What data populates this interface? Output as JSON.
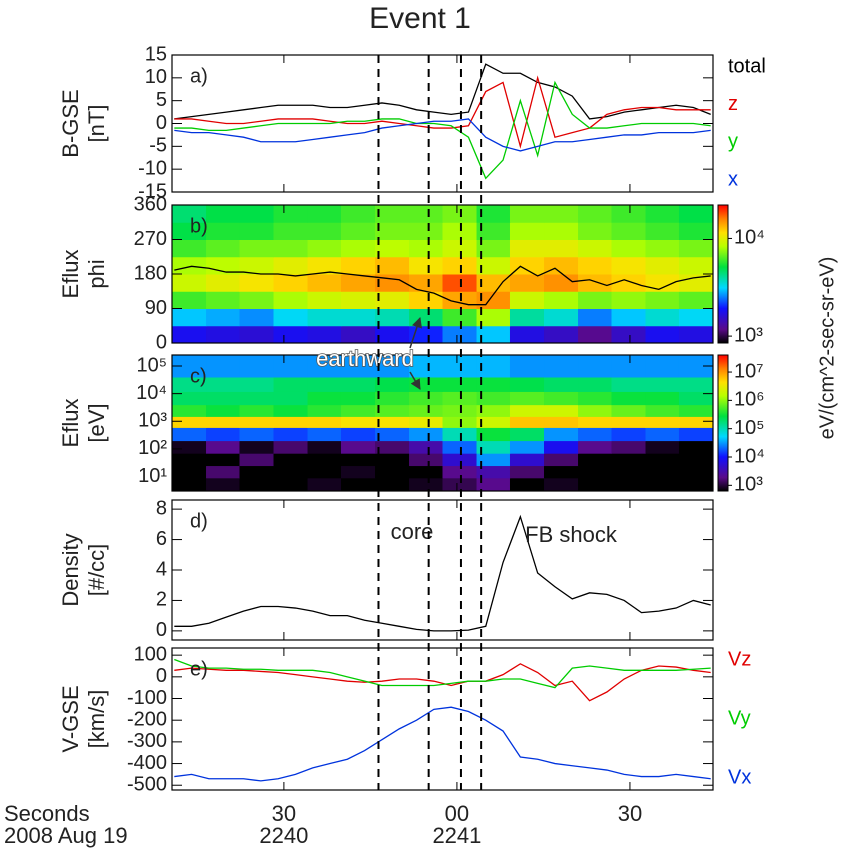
{
  "title": "Event 1",
  "xaxis": {
    "xlim": [
      10.6,
      104.4
    ],
    "xticks": [
      30,
      {
        "value": 60,
        "label": "00"
      },
      {
        "value": 90,
        "label": "30"
      }
    ],
    "xticks2": [
      {
        "value": 30,
        "label": "2240"
      },
      {
        "value": 60,
        "label": "2241"
      }
    ],
    "xlabel": [
      "Seconds",
      "2008 Aug 19"
    ]
  },
  "event_lines": [
    46.4,
    55.1,
    60.7,
    64.2
  ],
  "chart_data": [
    {
      "type": "line",
      "panel_label": "a)",
      "ylabel": [
        "B-GSE",
        "[nT]"
      ],
      "ylim": [
        -15,
        15
      ],
      "yticks": [
        -15,
        -10,
        -5,
        0,
        5,
        10,
        15
      ],
      "x": [
        11,
        14,
        17,
        20,
        23,
        26,
        29,
        32,
        35,
        38,
        41,
        44,
        47,
        50,
        53,
        56,
        59,
        62,
        65,
        68,
        71,
        74,
        77,
        80,
        83,
        86,
        89,
        92,
        95,
        98,
        101,
        104
      ],
      "series": [
        {
          "name": "total",
          "color": "#000000",
          "values": [
            1,
            1.5,
            2,
            2.5,
            3,
            3.5,
            4,
            4,
            4,
            3.5,
            3.5,
            4,
            4.5,
            4,
            3,
            2.5,
            2,
            2.5,
            13,
            11,
            11,
            9,
            8,
            6,
            1,
            1.5,
            2.5,
            3,
            3.5,
            4,
            3.5,
            2
          ]
        },
        {
          "name": "z",
          "color": "#e00000",
          "values": [
            1,
            1,
            0.5,
            0,
            0,
            0.5,
            1,
            1,
            1,
            0.5,
            0,
            0,
            0.5,
            0,
            -0.5,
            -1,
            -1,
            -0.5,
            7,
            9,
            -5,
            10,
            -3,
            -2,
            -1,
            2,
            3,
            3.5,
            3.5,
            3,
            3,
            3
          ]
        },
        {
          "name": "y",
          "color": "#00cc00",
          "values": [
            -1,
            -1,
            -1.5,
            -1.5,
            -1,
            -0.5,
            0,
            0,
            0,
            0,
            0.5,
            0.5,
            1,
            1,
            0,
            0,
            -0.5,
            -3,
            -12,
            -8,
            5,
            -7,
            9,
            2,
            -1,
            -1,
            -0.5,
            0,
            0,
            0,
            0,
            -0.5
          ]
        },
        {
          "name": "x",
          "color": "#0033dd",
          "values": [
            -1.5,
            -2,
            -2,
            -2.5,
            -3,
            -4,
            -4,
            -4,
            -3.5,
            -3,
            -2.5,
            -2,
            -1,
            -0.5,
            0,
            0.5,
            0.5,
            1,
            -3,
            -5,
            -6,
            -5,
            -4,
            -4,
            -3.5,
            -3,
            -2.5,
            -2.5,
            -2,
            -2,
            -2,
            -1.5
          ]
        }
      ]
    },
    {
      "type": "heatmap",
      "panel_label": "b)",
      "ylabel": [
        "Eflux",
        "phi"
      ],
      "ylim": [
        0,
        360
      ],
      "yticks": [
        0,
        90,
        180,
        270,
        360
      ],
      "x_edges": [
        10.6,
        16.5,
        22.3,
        28.2,
        34.1,
        39.9,
        45.8,
        51.7,
        57.5,
        63.4,
        69.2,
        75.1,
        81,
        86.8,
        92.7,
        98.5,
        104.4
      ],
      "y_edges": [
        0,
        45,
        90,
        135,
        180,
        225,
        270,
        315,
        360
      ],
      "z": [
        [
          1800,
          1700,
          1600,
          1800,
          1700,
          1500,
          1800,
          2000,
          2500,
          3000,
          1700,
          1500,
          1200,
          1500,
          1800,
          1700
        ],
        [
          3000,
          2800,
          2600,
          3200,
          3500,
          3500,
          3800,
          4500,
          6000,
          8000,
          4000,
          3500,
          2500,
          3000,
          3500,
          3200
        ],
        [
          6000,
          6500,
          7000,
          8000,
          9000,
          9500,
          10000,
          12000,
          14000,
          15000,
          9000,
          8000,
          7000,
          7500,
          7000,
          6500
        ],
        [
          9000,
          10000,
          11000,
          12000,
          13000,
          14000,
          15000,
          14000,
          18000,
          13000,
          14000,
          15000,
          13000,
          12000,
          11000,
          10000
        ],
        [
          8000,
          8500,
          9000,
          10000,
          11000,
          12000,
          13000,
          11000,
          12000,
          9000,
          12000,
          13000,
          12000,
          11000,
          10000,
          9000
        ],
        [
          6000,
          6500,
          7000,
          7000,
          7500,
          8000,
          8500,
          8000,
          9000,
          7000,
          10000,
          10000,
          9000,
          8000,
          7500,
          7000
        ],
        [
          5000,
          5500,
          5500,
          6000,
          6000,
          6500,
          7000,
          7000,
          8000,
          6000,
          8000,
          8000,
          7000,
          6500,
          6000,
          5500
        ],
        [
          4500,
          5000,
          5000,
          5500,
          5500,
          6000,
          6500,
          6500,
          7000,
          5500,
          7000,
          7000,
          6500,
          6000,
          5500,
          5000
        ]
      ],
      "zlim": [
        850,
        22000
      ],
      "zticks": [
        {
          "value": 1000,
          "label": "10³"
        },
        {
          "value": 10000,
          "label": "10⁴"
        }
      ],
      "zlabel": "eV/(cm^2-sec-sr-eV)",
      "overlay": {
        "color": "#000000",
        "x": [
          11,
          14,
          17,
          20,
          23,
          26,
          29,
          32,
          35,
          38,
          41,
          44,
          47,
          50,
          53,
          56,
          59,
          62,
          65,
          68,
          71,
          74,
          77,
          80,
          83,
          86,
          89,
          92,
          95,
          98,
          101,
          104
        ],
        "values": [
          190,
          200,
          195,
          185,
          185,
          180,
          180,
          175,
          180,
          185,
          180,
          175,
          170,
          165,
          140,
          130,
          110,
          100,
          100,
          160,
          200,
          175,
          195,
          160,
          165,
          150,
          165,
          150,
          140,
          160,
          170,
          175
        ]
      },
      "annotations": [
        "earthward"
      ]
    },
    {
      "type": "heatmap",
      "panel_label": "c)",
      "ylabel": [
        "Eflux",
        "[eV]"
      ],
      "ylog": true,
      "ylim": [
        3,
        250000
      ],
      "yticks": [
        {
          "value": 10,
          "label": "10¹"
        },
        {
          "value": 100,
          "label": "10²"
        },
        {
          "value": 1000,
          "label": "10³"
        },
        {
          "value": 10000,
          "label": "10⁴"
        },
        {
          "value": 100000,
          "label": "10⁵"
        }
      ],
      "x_edges": [
        10.6,
        16.5,
        22.3,
        28.2,
        34.1,
        39.9,
        45.8,
        51.7,
        57.5,
        63.4,
        69.2,
        75.1,
        81,
        86.8,
        92.7,
        98.5,
        104.4
      ],
      "y_edges": [
        3,
        9,
        25,
        70,
        200,
        600,
        1500,
        4000,
        12000,
        40000,
        250000
      ],
      "z": [
        [
          500,
          800,
          500,
          500,
          800,
          500,
          500,
          800,
          1200,
          2000,
          500,
          800,
          500,
          500,
          500,
          500
        ],
        [
          500,
          1500,
          500,
          500,
          500,
          800,
          500,
          500,
          2000,
          3000,
          1500,
          500,
          500,
          500,
          500,
          500
        ],
        [
          500,
          500,
          1500,
          500,
          500,
          500,
          500,
          1500,
          5000,
          30000,
          5000,
          1500,
          500,
          500,
          500,
          500
        ],
        [
          800,
          2000,
          800,
          1500,
          800,
          2000,
          1500,
          3000,
          20000,
          100000,
          30000,
          8000,
          2000,
          1500,
          800,
          500
        ],
        [
          20000,
          15000,
          20000,
          15000,
          20000,
          15000,
          20000,
          30000,
          100000,
          300000,
          200000,
          30000,
          20000,
          15000,
          20000,
          15000
        ],
        [
          5000000.0,
          5000000.0,
          5000000.0,
          5000000.0,
          5000000.0,
          4000000.0,
          4000000.0,
          3000000.0,
          1000000.0,
          2000000.0,
          6000000.0,
          6000000.0,
          5000000.0,
          5000000.0,
          5000000.0,
          5000000.0
        ],
        [
          400000.0,
          300000.0,
          400000.0,
          300000.0,
          400000.0,
          500000.0,
          600000.0,
          700000.0,
          800000.0,
          1000000.0,
          2000000.0,
          2000000.0,
          1000000.0,
          700000.0,
          500000.0,
          400000.0
        ],
        [
          200000.0,
          200000.0,
          200000.0,
          200000.0,
          300000.0,
          300000.0,
          400000.0,
          500000.0,
          600000.0,
          500000.0,
          600000.0,
          500000.0,
          400000.0,
          300000.0,
          300000.0,
          200000.0
        ],
        [
          150000.0,
          150000.0,
          150000.0,
          200000.0,
          200000.0,
          200000.0,
          250000.0,
          300000.0,
          300000.0,
          300000.0,
          250000.0,
          200000.0,
          200000.0,
          150000.0,
          150000.0,
          150000.0
        ],
        [
          30000.0,
          30000.0,
          30000.0,
          30000.0,
          30000.0,
          30000.0,
          30000.0,
          40000.0,
          40000.0,
          40000.0,
          30000.0,
          30000.0,
          30000.0,
          30000.0,
          30000.0,
          30000.0
        ]
      ],
      "zlim": [
        630,
        40000000
      ],
      "zticks": [
        {
          "value": 1000,
          "label": "10³"
        },
        {
          "value": 10000,
          "label": "10⁴"
        },
        {
          "value": 100000,
          "label": "10⁵"
        },
        {
          "value": 1000000,
          "label": "10⁶"
        },
        {
          "value": 10000000,
          "label": "10⁷"
        }
      ]
    },
    {
      "type": "line",
      "panel_label": "d)",
      "ylabel": [
        "Density",
        "[#/cc]"
      ],
      "ylim": [
        -0.6,
        8.6
      ],
      "yticks": [
        0,
        2,
        4,
        6,
        8
      ],
      "x": [
        11,
        14,
        17,
        20,
        23,
        26,
        29,
        32,
        35,
        38,
        41,
        44,
        47,
        50,
        53,
        56,
        59,
        62,
        65,
        68,
        71,
        74,
        77,
        80,
        83,
        86,
        89,
        92,
        95,
        98,
        101,
        104
      ],
      "series": [
        {
          "color": "#000000",
          "values": [
            0.3,
            0.3,
            0.5,
            0.9,
            1.3,
            1.6,
            1.6,
            1.5,
            1.3,
            1.0,
            1.0,
            0.7,
            0.5,
            0.3,
            0.1,
            0,
            0,
            0.05,
            0.3,
            4.5,
            7.5,
            3.8,
            2.9,
            2.1,
            2.5,
            2.4,
            2.0,
            1.2,
            1.3,
            1.5,
            2.0,
            1.7
          ]
        }
      ],
      "annotations": [
        "core",
        "FB shock"
      ]
    },
    {
      "type": "line",
      "panel_label": "e)",
      "ylabel": [
        "V-GSE",
        "[km/s]"
      ],
      "ylim": [
        -522,
        133
      ],
      "yticks": [
        -500,
        -400,
        -300,
        -200,
        -100,
        0,
        100
      ],
      "x": [
        11,
        14,
        17,
        20,
        23,
        26,
        29,
        32,
        35,
        38,
        41,
        44,
        47,
        50,
        53,
        56,
        59,
        62,
        65,
        68,
        71,
        74,
        77,
        80,
        83,
        86,
        89,
        92,
        95,
        98,
        101,
        104
      ],
      "series": [
        {
          "name": "Vz",
          "color": "#e00000",
          "values": [
            30,
            40,
            35,
            30,
            30,
            25,
            20,
            10,
            0,
            -10,
            -20,
            -25,
            -20,
            -10,
            -10,
            -20,
            -40,
            -20,
            -20,
            10,
            60,
            20,
            -40,
            -20,
            -110,
            -70,
            -10,
            30,
            50,
            45,
            30,
            20
          ]
        },
        {
          "name": "Vy",
          "color": "#00cc00",
          "values": [
            80,
            50,
            40,
            40,
            35,
            35,
            30,
            30,
            30,
            20,
            0,
            -20,
            -40,
            -40,
            -40,
            -40,
            -30,
            -20,
            -20,
            -10,
            -10,
            -30,
            -50,
            40,
            50,
            40,
            30,
            30,
            30,
            30,
            35,
            40
          ]
        },
        {
          "name": "Vx",
          "color": "#0033dd",
          "values": [
            -460,
            -450,
            -470,
            -470,
            -470,
            -480,
            -470,
            -450,
            -420,
            -400,
            -380,
            -340,
            -290,
            -240,
            -200,
            -150,
            -140,
            -160,
            -200,
            -250,
            -370,
            -380,
            -400,
            -410,
            -420,
            -430,
            -450,
            -460,
            -460,
            -450,
            -460,
            -470
          ]
        }
      ]
    }
  ]
}
